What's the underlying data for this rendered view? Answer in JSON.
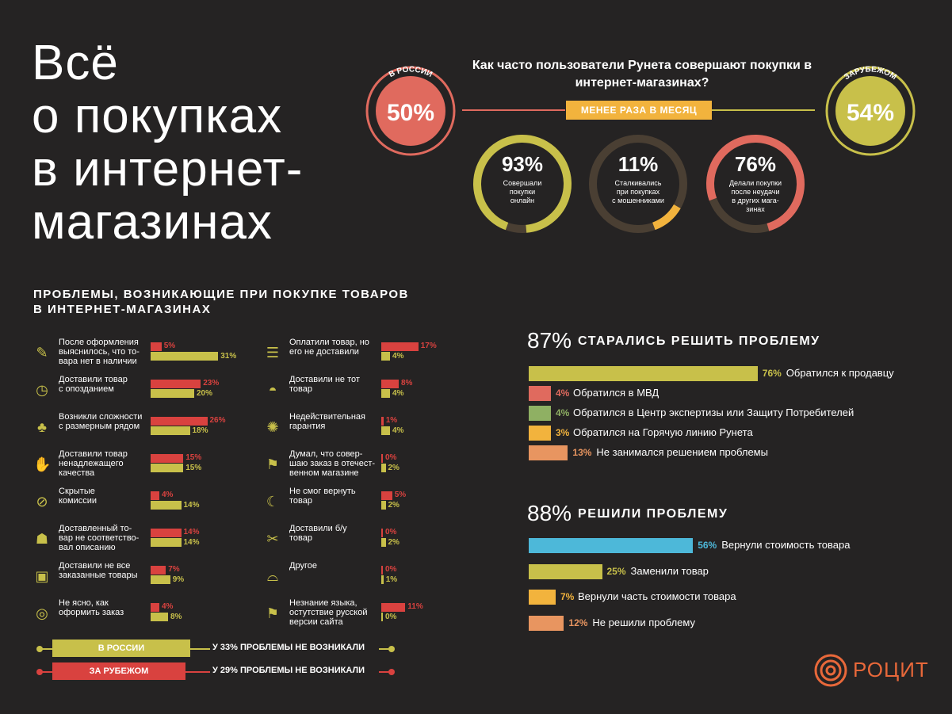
{
  "title": [
    "Всё",
    "о покупках",
    "в интернет-",
    "магазинах"
  ],
  "question": "Как часто пользователи Рунета совершают покупки в интернет-магазинах?",
  "frequency_label": "МЕНЕЕ РАЗА В МЕСЯЦ",
  "russia": {
    "label": "В РОССИИ",
    "value": "50%",
    "color": "#e06a5e"
  },
  "abroad": {
    "label": "ЗАРУБЕЖОМ",
    "value": "54%",
    "color": "#c8c04a"
  },
  "rings": [
    {
      "value": "93%",
      "text": [
        "Совершали",
        "покупки",
        "онлайн"
      ],
      "fraction": 0.93,
      "color": "#c8c04a"
    },
    {
      "value": "11%",
      "text": [
        "Сталкивались",
        "при покупках",
        "с мошенниками"
      ],
      "fraction": 0.11,
      "color": "#f2b33d"
    },
    {
      "value": "76%",
      "text": [
        "Делали покупки",
        "после неудачи",
        "в других мага-",
        "зинах"
      ],
      "fraction": 0.76,
      "color": "#e06a5e"
    }
  ],
  "problems_heading": [
    "ПРОБЛЕМЫ, ВОЗНИКАЮЩИЕ ПРИ ПОКУПКЕ ТОВАРОВ",
    "В ИНТЕРНЕТ-МАГАЗИНАХ"
  ],
  "chart_data": [
    {
      "type": "bar",
      "series": [
        {
          "name": "В РОССИИ"
        },
        {
          "name": "ЗА РУБЕЖОМ"
        }
      ],
      "items": [
        {
          "label": [
            "После оформления",
            "выяснилось, что то-",
            "вара нет в наличии"
          ],
          "icon": "flashlight-icon",
          "russia": 5,
          "abroad": 31
        },
        {
          "label": [
            "Доставили товар",
            "с опозданием"
          ],
          "icon": "clock-icon",
          "russia": 23,
          "abroad": 20
        },
        {
          "label": [
            "Возникли сложности",
            "с размерным рядом"
          ],
          "icon": "tshirt-icon",
          "russia": 26,
          "abroad": 18
        },
        {
          "label": [
            "Доставили товар",
            "ненадлежащего",
            "качества"
          ],
          "icon": "thumbs-down-icon",
          "russia": 15,
          "abroad": 15
        },
        {
          "label": [
            "Скрытые",
            "комиссии"
          ],
          "icon": "percent-icon",
          "russia": 4,
          "abroad": 14
        },
        {
          "label": [
            "Доставленный то-",
            "вар не соответство-",
            "вал описанию"
          ],
          "icon": "car-icon",
          "russia": 14,
          "abroad": 14
        },
        {
          "label": [
            "Доставили не все",
            "заказанные товары"
          ],
          "icon": "box-icon",
          "russia": 7,
          "abroad": 9
        },
        {
          "label": [
            "Не ясно, как",
            "оформить заказ"
          ],
          "icon": "target-icon",
          "russia": 4,
          "abroad": 8
        },
        {
          "label": [
            "Оплатили товар, но",
            "его не доставили"
          ],
          "icon": "coins-icon",
          "russia": 17,
          "abroad": 4
        },
        {
          "label": [
            "Доставили не тот",
            "товар"
          ],
          "icon": "cap-icon",
          "russia": 8,
          "abroad": 4
        },
        {
          "label": [
            "Недействительная",
            "гарантия"
          ],
          "icon": "badge-icon",
          "russia": 1,
          "abroad": 4
        },
        {
          "label": [
            "Думал, что совер-",
            "шаю заказ в отечест-",
            "венном магазине"
          ],
          "icon": "flag-icon",
          "russia": 0,
          "abroad": 2
        },
        {
          "label": [
            "Не смог вернуть",
            "товар"
          ],
          "icon": "boomerang-icon",
          "russia": 5,
          "abroad": 2
        },
        {
          "label": [
            "Доставили б/у",
            "товар"
          ],
          "icon": "wrench-icon",
          "russia": 0,
          "abroad": 2
        },
        {
          "label": [
            "Другое"
          ],
          "icon": "ufo-icon",
          "russia": 0,
          "abroad": 1
        },
        {
          "label": [
            "Незнание языка,",
            "остутствие русской",
            "версии сайта"
          ],
          "icon": "flag2-icon",
          "russia": 11,
          "abroad": 0
        }
      ]
    },
    {
      "type": "bar",
      "headline_value": "87%",
      "title": "СТАРАЛИСЬ РЕШИТЬ ПРОБЛЕМУ",
      "categories": [
        "Обратился к продавцу",
        "Обратился в МВД",
        "Обратился в Центр экспертизы или Защиту Потребителей",
        "Обратился на Горячую линию Рунета",
        "Не занимался решением проблемы"
      ],
      "values": [
        76,
        4,
        4,
        3,
        13
      ],
      "colors": [
        "#c8c04a",
        "#e06a5e",
        "#8fb063",
        "#f2b33d",
        "#e89560"
      ]
    },
    {
      "type": "bar",
      "headline_value": "88%",
      "title": "РЕШИЛИ ПРОБЛЕМУ",
      "categories": [
        "Вернули стоимость товара",
        "Заменили товар",
        "Вернули часть стоимости товара",
        "Не решили проблему"
      ],
      "values": [
        56,
        25,
        7,
        12
      ],
      "colors": [
        "#4db8d9",
        "#c8c04a",
        "#f2b33d",
        "#e89560"
      ]
    }
  ],
  "legend": {
    "russia_label": "В РОССИИ",
    "abroad_label": "ЗА РУБЕЖОМ",
    "russia_note": "У 33% ПРОБЛЕМЫ НЕ ВОЗНИКАЛИ",
    "abroad_note": "У 29% ПРОБЛЕМЫ НЕ ВОЗНИКАЛИ"
  },
  "brand": "РОЦИТ"
}
